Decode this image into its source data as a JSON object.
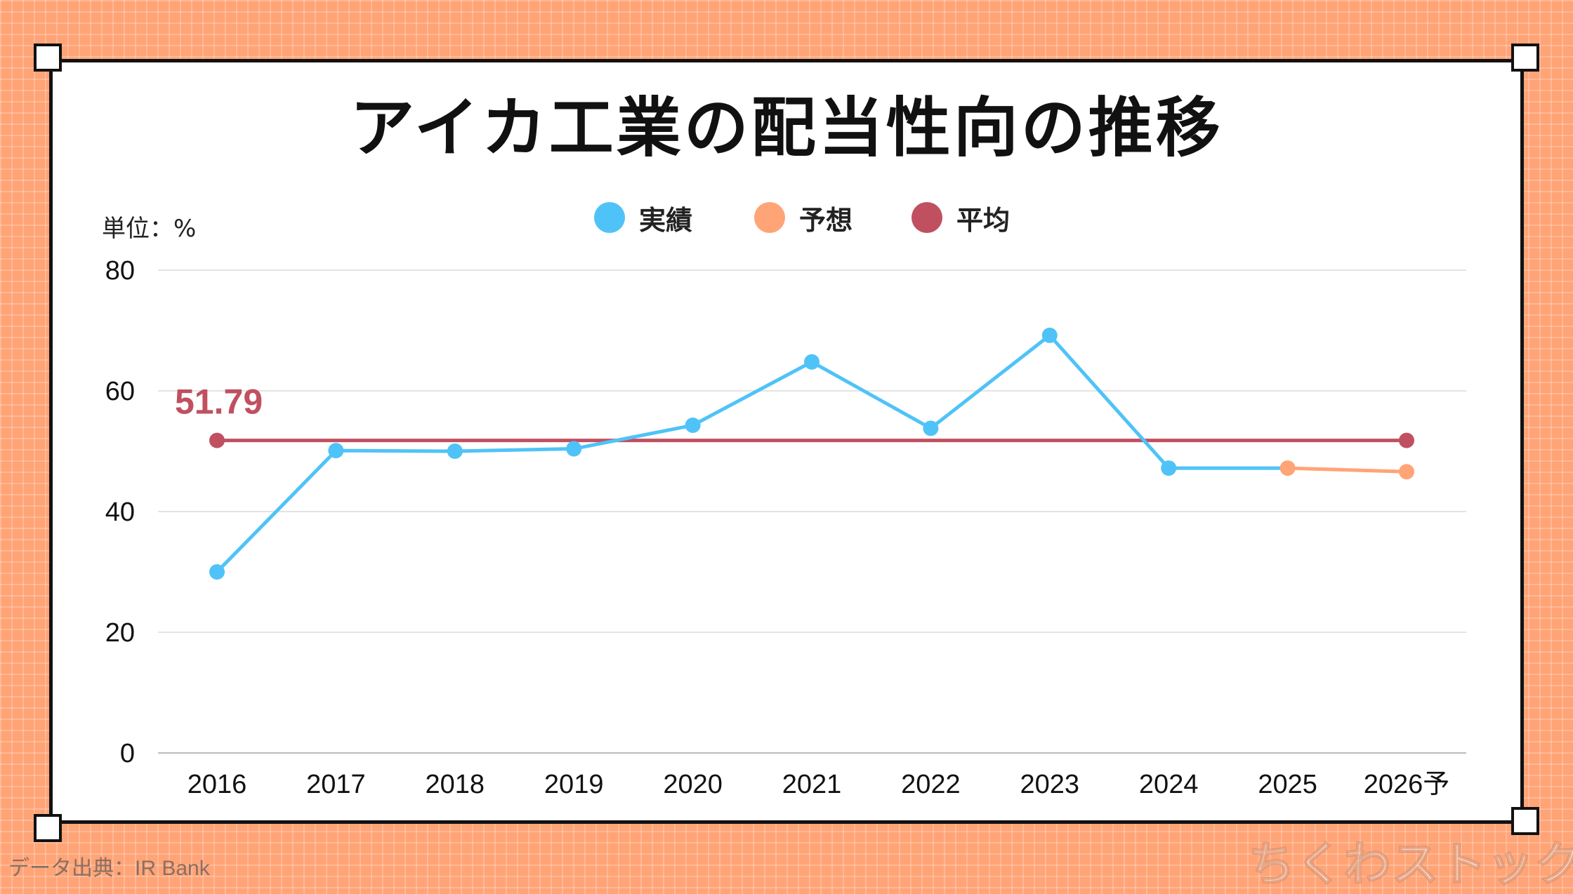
{
  "title": "アイカ工業の配当性向の推移",
  "unit_label": "単位：%",
  "source": "データ出典：IR Bank",
  "watermark": "ちくわストック",
  "colors": {
    "actual": "#4fc3f7",
    "forecast": "#ffa477",
    "average": "#c05060",
    "background": "#ffa477"
  },
  "chart_data": {
    "type": "line",
    "title": "アイカ工業の配当性向の推移",
    "ylabel": "単位：%",
    "xlabel": "",
    "ylim": [
      0,
      80
    ],
    "yticks": [
      "0",
      "20",
      "40",
      "60",
      "80"
    ],
    "grid": true,
    "legend_position": "top-center",
    "categories": [
      "2016",
      "2017",
      "2018",
      "2019",
      "2020",
      "2021",
      "2022",
      "2023",
      "2024",
      "2025",
      "2026予"
    ],
    "series": [
      {
        "name": "実績",
        "color": "#4fc3f7",
        "values": [
          30.0,
          50.1,
          50.0,
          50.4,
          54.3,
          64.8,
          53.8,
          69.2,
          47.2,
          null,
          null
        ]
      },
      {
        "name": "予想",
        "color": "#ffa477",
        "values": [
          null,
          null,
          null,
          null,
          null,
          null,
          null,
          null,
          null,
          47.2,
          46.6
        ]
      },
      {
        "name": "平均",
        "color": "#c05060",
        "values": [
          51.79,
          null,
          null,
          null,
          null,
          null,
          null,
          null,
          null,
          null,
          51.79
        ],
        "label": "51.79"
      }
    ]
  }
}
